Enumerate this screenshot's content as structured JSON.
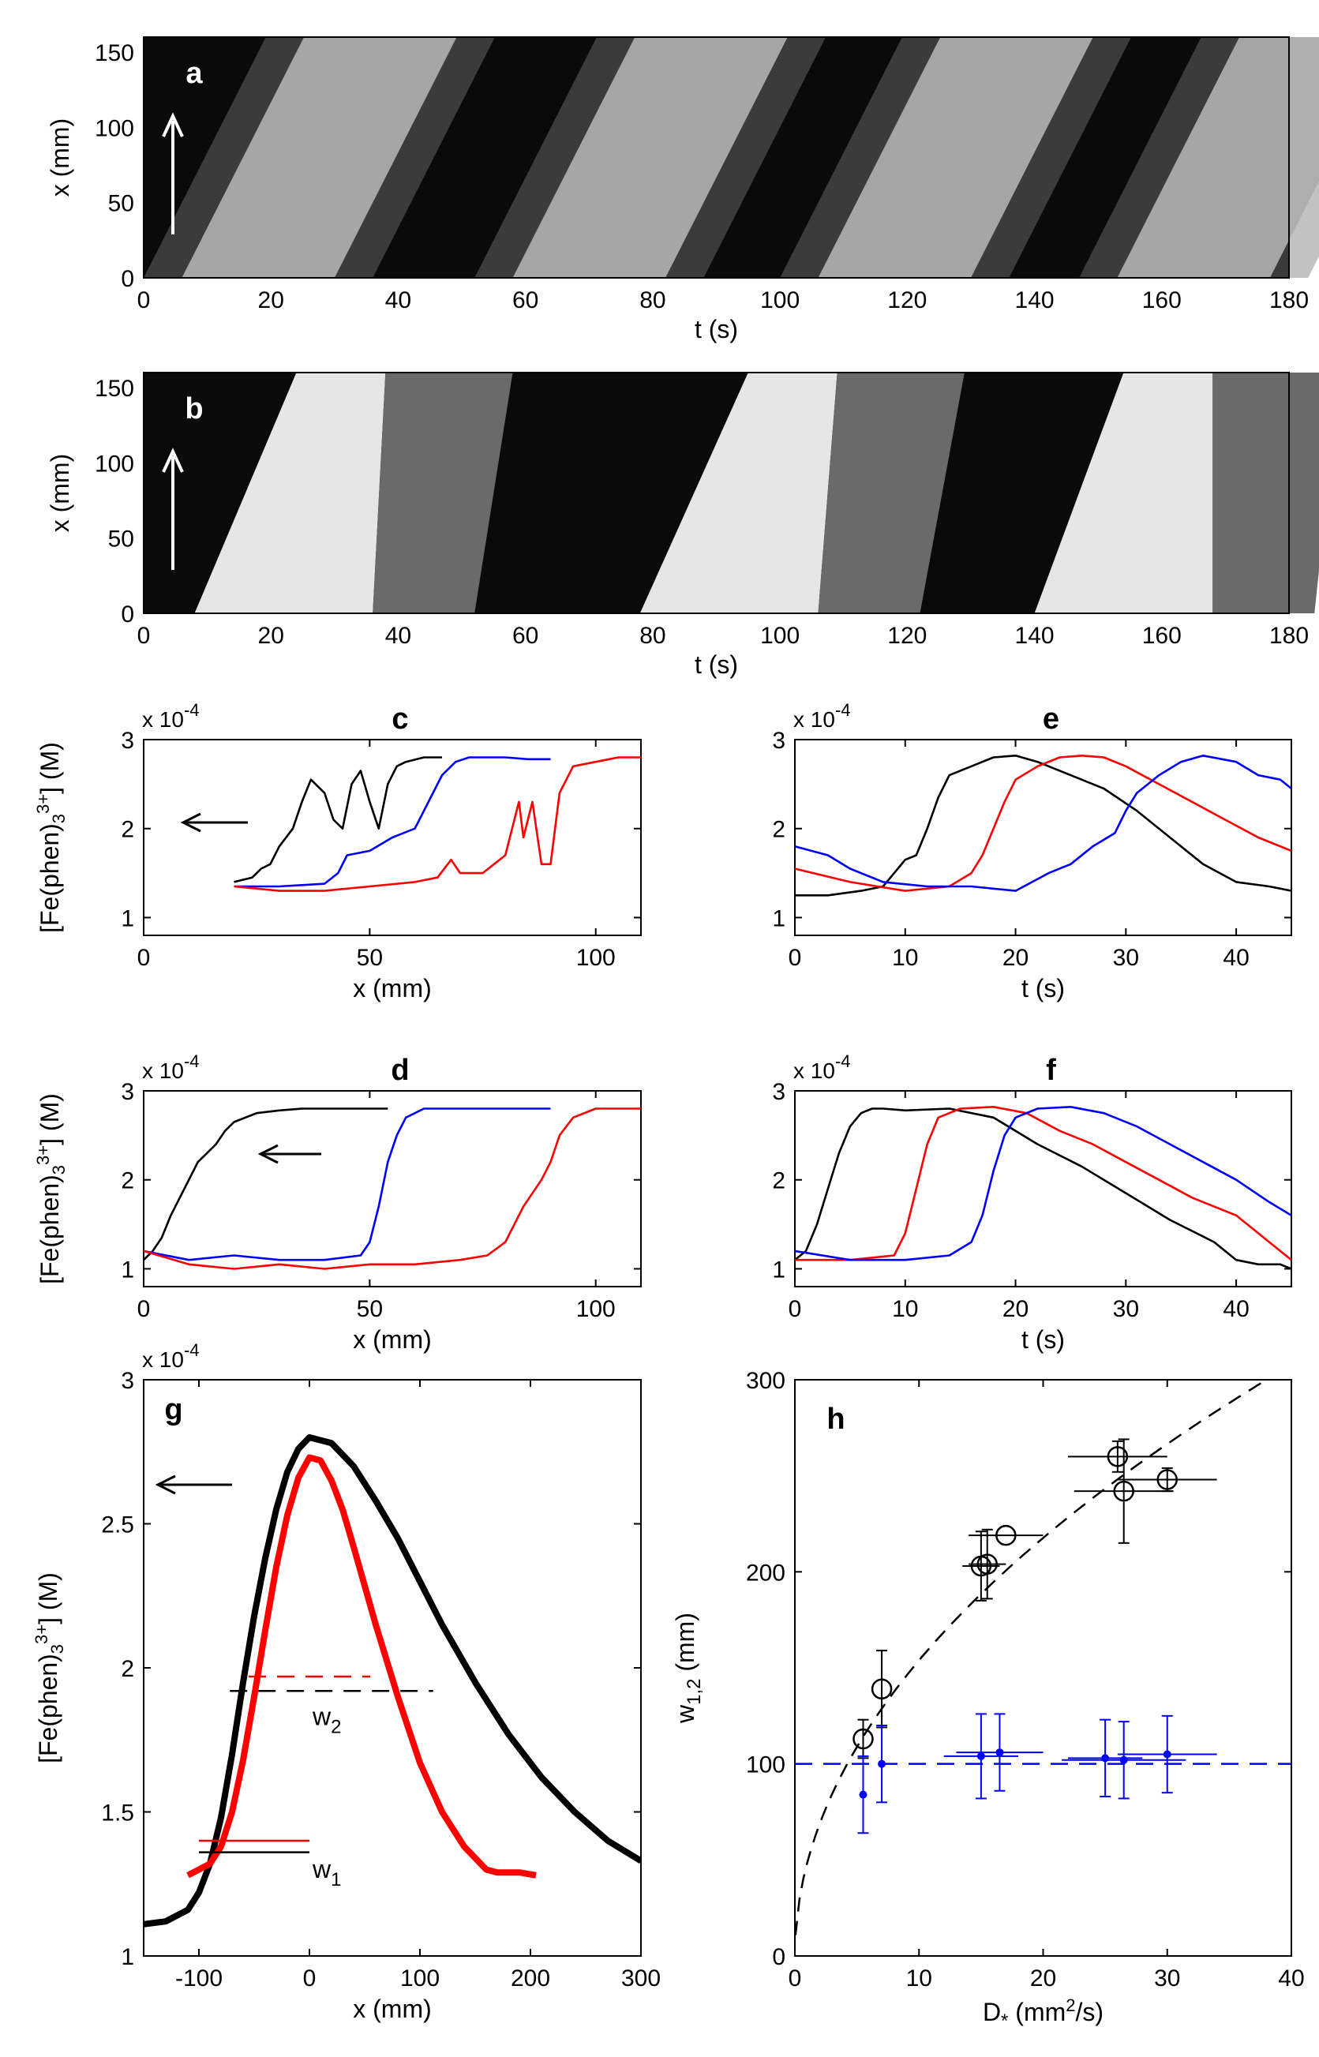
{
  "chart_data": [
    {
      "panel": "a",
      "type": "heatmap",
      "label": "a",
      "xlabel": "t (s)",
      "ylabel": "x (mm)",
      "xlim": [
        0,
        180
      ],
      "ylim": [
        0,
        160
      ],
      "xticks": [
        0,
        20,
        40,
        60,
        80,
        100,
        120,
        140,
        160,
        180
      ],
      "yticks": [
        0,
        50,
        100,
        150
      ],
      "colormap": "grayscale",
      "bright_bands_center_t_at_x0": [
        18,
        70,
        118,
        165
      ],
      "band_slope_s_per_mm": 0.12,
      "arrow": "up"
    },
    {
      "panel": "b",
      "type": "heatmap",
      "label": "b",
      "xlabel": "t (s)",
      "ylabel": "x (mm)",
      "xlim": [
        0,
        180
      ],
      "ylim": [
        0,
        160
      ],
      "xticks": [
        0,
        20,
        40,
        60,
        80,
        100,
        120,
        140,
        160,
        180
      ],
      "yticks": [
        0,
        50,
        100,
        150
      ],
      "colormap": "grayscale",
      "front_t_at_x0": [
        8,
        78,
        140
      ],
      "front_t_at_x160": [
        24,
        95,
        154
      ],
      "arrow": "up"
    },
    {
      "panel": "c",
      "type": "line",
      "label": "c",
      "xlabel": "x (mm)",
      "ylabel": "[Fe(phen)3 3+] (M)",
      "multiplier": "x 10",
      "multiplier_exp": "-4",
      "xlim": [
        0,
        110
      ],
      "ylim": [
        0.8,
        3
      ],
      "xticks": [
        0,
        50,
        100
      ],
      "yticks": [
        1,
        2,
        3
      ],
      "arrow": "left",
      "series": [
        {
          "color": "#000000",
          "x": [
            20,
            24,
            26,
            28,
            30,
            33,
            35,
            37,
            40,
            42,
            44,
            46,
            48,
            50,
            52,
            54,
            56,
            58,
            62,
            66
          ],
          "y": [
            1.4,
            1.45,
            1.55,
            1.6,
            1.8,
            2.0,
            2.3,
            2.55,
            2.4,
            2.1,
            2.0,
            2.5,
            2.65,
            2.3,
            2.0,
            2.5,
            2.7,
            2.75,
            2.8,
            2.8
          ]
        },
        {
          "color": "#0000ff",
          "x": [
            20,
            30,
            40,
            43,
            45,
            50,
            55,
            60,
            63,
            66,
            69,
            72,
            75,
            80,
            85,
            90
          ],
          "y": [
            1.35,
            1.35,
            1.38,
            1.5,
            1.7,
            1.75,
            1.9,
            2.0,
            2.3,
            2.6,
            2.75,
            2.8,
            2.8,
            2.8,
            2.78,
            2.78
          ]
        },
        {
          "color": "#ff0000",
          "x": [
            20,
            30,
            40,
            50,
            60,
            65,
            68,
            70,
            75,
            80,
            83,
            84,
            86,
            88,
            90,
            92,
            95,
            100,
            105,
            110
          ],
          "y": [
            1.35,
            1.3,
            1.3,
            1.35,
            1.4,
            1.45,
            1.65,
            1.5,
            1.5,
            1.7,
            2.3,
            1.9,
            2.3,
            1.6,
            1.6,
            2.4,
            2.7,
            2.75,
            2.8,
            2.8
          ]
        }
      ]
    },
    {
      "panel": "d",
      "type": "line",
      "label": "d",
      "xlabel": "x (mm)",
      "ylabel": "[Fe(phen)3 3+] (M)",
      "multiplier": "x 10",
      "multiplier_exp": "-4",
      "xlim": [
        0,
        110
      ],
      "ylim": [
        0.8,
        3
      ],
      "xticks": [
        0,
        50,
        100
      ],
      "yticks": [
        1,
        2,
        3
      ],
      "arrow": "left",
      "series": [
        {
          "color": "#000000",
          "x": [
            0,
            2,
            4,
            6,
            8,
            10,
            12,
            14,
            16,
            18,
            20,
            25,
            30,
            35,
            40,
            45,
            50,
            54
          ],
          "y": [
            1.1,
            1.2,
            1.35,
            1.6,
            1.8,
            2.0,
            2.2,
            2.3,
            2.4,
            2.55,
            2.65,
            2.75,
            2.78,
            2.8,
            2.8,
            2.8,
            2.8,
            2.8
          ]
        },
        {
          "color": "#0000ff",
          "x": [
            0,
            10,
            20,
            30,
            40,
            48,
            50,
            52,
            54,
            56,
            58,
            62,
            66,
            70,
            80,
            90
          ],
          "y": [
            1.2,
            1.1,
            1.15,
            1.1,
            1.1,
            1.15,
            1.3,
            1.7,
            2.2,
            2.5,
            2.7,
            2.8,
            2.8,
            2.8,
            2.8,
            2.8
          ]
        },
        {
          "color": "#ff0000",
          "x": [
            0,
            10,
            20,
            30,
            40,
            50,
            60,
            70,
            76,
            80,
            84,
            88,
            90,
            92,
            95,
            100,
            110
          ],
          "y": [
            1.2,
            1.05,
            1.0,
            1.05,
            1.0,
            1.05,
            1.05,
            1.1,
            1.15,
            1.3,
            1.7,
            2.0,
            2.2,
            2.5,
            2.7,
            2.8,
            2.8
          ]
        }
      ]
    },
    {
      "panel": "e",
      "type": "line",
      "label": "e",
      "xlabel": "t (s)",
      "ylabel": "",
      "multiplier": "x 10",
      "multiplier_exp": "-4",
      "xlim": [
        0,
        45
      ],
      "ylim": [
        0.8,
        3
      ],
      "xticks": [
        0,
        10,
        20,
        30,
        40
      ],
      "yticks": [
        1,
        2,
        3
      ],
      "series": [
        {
          "color": "#000000",
          "x": [
            0,
            3,
            6,
            8,
            9,
            10,
            11,
            12,
            13,
            14,
            16,
            18,
            20,
            22,
            25,
            28,
            31,
            34,
            37,
            40,
            43,
            45
          ],
          "y": [
            1.25,
            1.25,
            1.3,
            1.35,
            1.5,
            1.65,
            1.7,
            2.0,
            2.35,
            2.6,
            2.7,
            2.8,
            2.82,
            2.75,
            2.6,
            2.45,
            2.2,
            1.9,
            1.6,
            1.4,
            1.35,
            1.3
          ]
        },
        {
          "color": "#ff0000",
          "x": [
            0,
            5,
            10,
            14,
            16,
            17,
            18,
            19,
            20,
            22,
            24,
            26,
            28,
            30,
            33,
            36,
            39,
            42,
            45
          ],
          "y": [
            1.55,
            1.4,
            1.3,
            1.35,
            1.5,
            1.7,
            2.0,
            2.3,
            2.55,
            2.7,
            2.8,
            2.82,
            2.8,
            2.7,
            2.5,
            2.3,
            2.1,
            1.9,
            1.75
          ]
        },
        {
          "color": "#0000ff",
          "x": [
            0,
            3,
            5,
            8,
            12,
            16,
            20,
            23,
            25,
            27,
            29,
            30,
            31,
            33,
            35,
            37,
            40,
            42,
            44,
            45
          ],
          "y": [
            1.8,
            1.7,
            1.55,
            1.4,
            1.35,
            1.35,
            1.3,
            1.5,
            1.6,
            1.8,
            1.95,
            2.2,
            2.4,
            2.6,
            2.75,
            2.82,
            2.75,
            2.6,
            2.55,
            2.45
          ]
        }
      ]
    },
    {
      "panel": "f",
      "type": "line",
      "label": "f",
      "xlabel": "t (s)",
      "ylabel": "",
      "multiplier": "x 10",
      "multiplier_exp": "-4",
      "xlim": [
        0,
        45
      ],
      "ylim": [
        0.8,
        3
      ],
      "xticks": [
        0,
        10,
        20,
        30,
        40
      ],
      "yticks": [
        1,
        2,
        3
      ],
      "series": [
        {
          "color": "#000000",
          "x": [
            0,
            1,
            2,
            3,
            4,
            5,
            6,
            7,
            8,
            10,
            14,
            18,
            22,
            26,
            30,
            34,
            38,
            40,
            42,
            44,
            45
          ],
          "y": [
            1.1,
            1.2,
            1.5,
            1.9,
            2.3,
            2.6,
            2.75,
            2.8,
            2.8,
            2.78,
            2.8,
            2.7,
            2.4,
            2.15,
            1.85,
            1.55,
            1.3,
            1.1,
            1.05,
            1.05,
            1.0
          ]
        },
        {
          "color": "#ff0000",
          "x": [
            0,
            5,
            9,
            10,
            11,
            12,
            13,
            15,
            18,
            21,
            24,
            27,
            30,
            33,
            36,
            40,
            43,
            45
          ],
          "y": [
            1.1,
            1.1,
            1.15,
            1.4,
            1.9,
            2.4,
            2.7,
            2.8,
            2.82,
            2.75,
            2.55,
            2.4,
            2.2,
            2.0,
            1.8,
            1.6,
            1.3,
            1.1
          ]
        },
        {
          "color": "#0000ff",
          "x": [
            0,
            5,
            10,
            14,
            16,
            17,
            18,
            19,
            20,
            22,
            25,
            28,
            31,
            34,
            37,
            40,
            43,
            45
          ],
          "y": [
            1.2,
            1.1,
            1.1,
            1.15,
            1.3,
            1.6,
            2.1,
            2.5,
            2.7,
            2.8,
            2.82,
            2.75,
            2.6,
            2.4,
            2.2,
            2.0,
            1.75,
            1.6
          ]
        }
      ]
    },
    {
      "panel": "g",
      "type": "line",
      "label": "g",
      "xlabel": "x (mm)",
      "ylabel": "[Fe(phen)3 3+] (M)",
      "multiplier": "x 10",
      "multiplier_exp": "-4",
      "xlim": [
        -150,
        300
      ],
      "ylim": [
        1,
        3
      ],
      "xticks": [
        -100,
        0,
        100,
        200,
        300
      ],
      "yticks": [
        1,
        1.5,
        2,
        2.5,
        3
      ],
      "arrow": "left",
      "series": [
        {
          "color": "#000000",
          "x": [
            -150,
            -130,
            -110,
            -100,
            -90,
            -80,
            -70,
            -60,
            -50,
            -40,
            -30,
            -20,
            -10,
            0,
            20,
            40,
            60,
            80,
            100,
            120,
            150,
            180,
            210,
            240,
            270,
            300
          ],
          "y": [
            1.11,
            1.12,
            1.16,
            1.22,
            1.32,
            1.48,
            1.7,
            1.95,
            2.18,
            2.38,
            2.55,
            2.68,
            2.76,
            2.8,
            2.78,
            2.7,
            2.58,
            2.45,
            2.3,
            2.15,
            1.95,
            1.77,
            1.62,
            1.5,
            1.4,
            1.33
          ]
        },
        {
          "color": "#ff0000",
          "x": [
            -110,
            -100,
            -90,
            -80,
            -70,
            -60,
            -50,
            -40,
            -30,
            -20,
            -10,
            0,
            10,
            20,
            30,
            40,
            60,
            80,
            100,
            120,
            140,
            160,
            170,
            180,
            190,
            205
          ],
          "y": [
            1.28,
            1.3,
            1.32,
            1.38,
            1.5,
            1.68,
            1.9,
            2.13,
            2.35,
            2.53,
            2.66,
            2.73,
            2.72,
            2.65,
            2.55,
            2.42,
            2.15,
            1.9,
            1.67,
            1.5,
            1.38,
            1.3,
            1.29,
            1.29,
            1.29,
            1.28
          ]
        }
      ],
      "annotations": [
        {
          "text": "w",
          "sub": "2",
          "x": 0,
          "y": 1.84
        },
        {
          "text": "w",
          "sub": "1",
          "x": 0,
          "y": 1.31
        }
      ],
      "markers": [
        {
          "color": "#000000",
          "style": "dashed",
          "x1": -72,
          "x2": 112,
          "y": 1.92
        },
        {
          "color": "#ff0000",
          "style": "dashed",
          "x1": -55,
          "x2": 55,
          "y": 1.97
        },
        {
          "color": "#ff0000",
          "style": "solid",
          "x1": -100,
          "x2": 0,
          "y": 1.4
        },
        {
          "color": "#000000",
          "style": "solid",
          "x1": -100,
          "x2": 0,
          "y": 1.36
        }
      ]
    },
    {
      "panel": "h",
      "type": "scatter",
      "label": "h",
      "xlabel": "D",
      "xlabel_sub": "*",
      "xlabel_unit": " (mm",
      "xlabel_unit_exp": "2",
      "xlabel_unit_end": "/s)",
      "ylabel": "w",
      "ylabel_sub": "1,2",
      "ylabel_unit": " (mm)",
      "xlim": [
        0,
        40
      ],
      "ylim": [
        0,
        300
      ],
      "xticks": [
        0,
        10,
        20,
        30,
        40
      ],
      "yticks": [
        0,
        100,
        200,
        300
      ],
      "series": [
        {
          "color": "#000000",
          "marker": "circle",
          "x": [
            5.5,
            7,
            15,
            15.5,
            17,
            26,
            26.5,
            30
          ],
          "y": [
            113,
            139,
            203,
            204,
            219,
            260,
            242,
            248
          ],
          "xerr": [
            0,
            0,
            1.5,
            1.5,
            3,
            4,
            4,
            4
          ],
          "yerr": [
            10,
            20,
            18,
            18,
            0,
            8,
            27,
            6
          ]
        },
        {
          "color": "#0000ff",
          "marker": "dot",
          "x": [
            5.5,
            7,
            15,
            16.5,
            25,
            26.5,
            30
          ],
          "y": [
            84,
            100,
            104,
            106,
            103,
            102,
            105
          ],
          "xerr": [
            0,
            0,
            3,
            3.5,
            3,
            5,
            4
          ],
          "yerr": [
            20,
            20,
            22,
            20,
            20,
            20,
            20
          ]
        }
      ],
      "fit_black": {
        "color": "#000000",
        "style": "dashed"
      },
      "fit_blue": {
        "color": "#0000ff",
        "style": "dashed",
        "y": 100
      }
    }
  ]
}
